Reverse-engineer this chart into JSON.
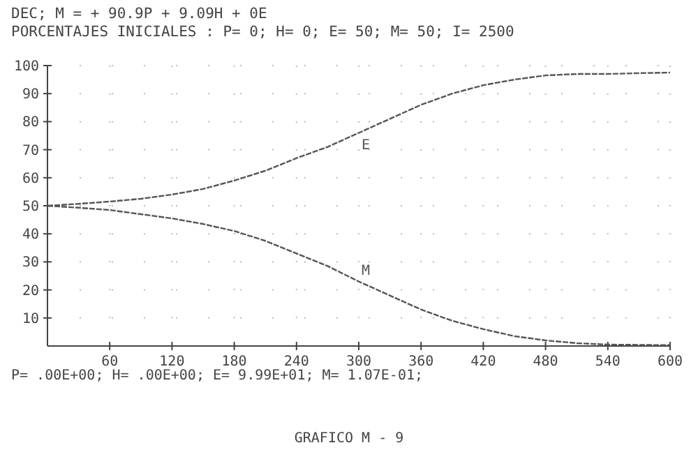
{
  "chart_data": {
    "type": "line",
    "title": "DEC; M =  + 90.9P + 9.09H + 0E",
    "subtitle": "PORCENTAJES INICIALES : P= 0; H= 0; E= 50; M= 50; I= 2500",
    "x": [
      0,
      30,
      60,
      90,
      120,
      150,
      180,
      210,
      240,
      270,
      300,
      330,
      360,
      390,
      420,
      450,
      480,
      510,
      540,
      570,
      600
    ],
    "series": [
      {
        "name": "E",
        "color": "#555555",
        "values": [
          50,
          50.7,
          51.5,
          52.5,
          54,
          56,
          59,
          62.5,
          67,
          71,
          76,
          81,
          86,
          90,
          93,
          95,
          96.5,
          97,
          97,
          97.3,
          97.5
        ]
      },
      {
        "name": "M",
        "color": "#555555",
        "values": [
          50,
          49.3,
          48.5,
          47,
          45.5,
          43.5,
          41,
          37.5,
          33,
          28.5,
          23,
          18,
          13,
          9,
          6,
          3.5,
          2,
          1,
          0.5,
          0.4,
          0.3
        ]
      }
    ],
    "xlim": [
      0,
      600
    ],
    "ylim": [
      0,
      100
    ],
    "xticks": [
      60,
      120,
      180,
      240,
      300,
      360,
      420,
      480,
      540,
      600
    ],
    "yticks": [
      10,
      20,
      30,
      40,
      50,
      60,
      70,
      80,
      90,
      100
    ],
    "grid": true,
    "line_style": "dashed",
    "annotations": [
      "P=  .00E+00; H=  .00E+00; E= 9.99E+01; M= 1.07E-01;",
      "GRAFICO  M - 9"
    ]
  }
}
